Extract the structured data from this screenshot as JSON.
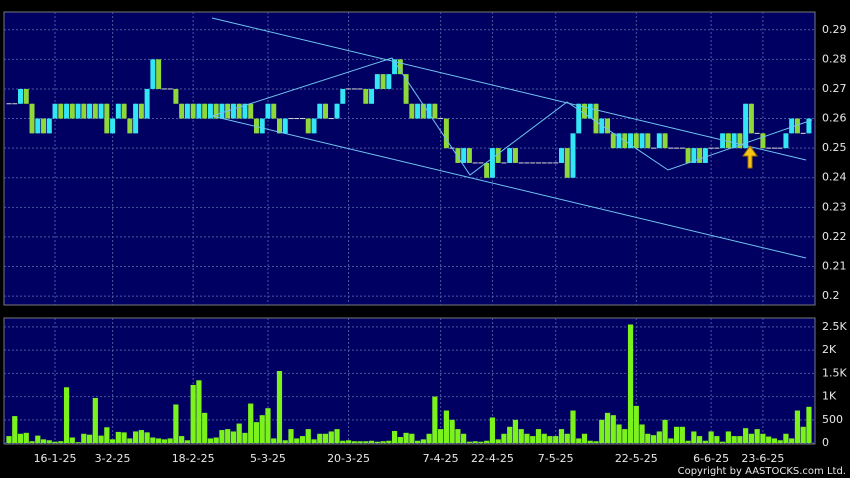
{
  "chart_data": [
    {
      "type": "candlestick",
      "categories": [
        null,
        null,
        null,
        null,
        null,
        null,
        null,
        null,
        "16-1-25",
        null,
        null,
        null,
        null,
        null,
        null,
        null,
        null,
        null,
        "3-2-25",
        null,
        null,
        null,
        null,
        null,
        null,
        null,
        null,
        null,
        null,
        null,
        null,
        null,
        "18-2-25",
        null,
        null,
        null,
        null,
        null,
        null,
        null,
        null,
        null,
        null,
        null,
        null,
        "5-3-25",
        null,
        null,
        null,
        null,
        null,
        null,
        null,
        null,
        null,
        null,
        null,
        null,
        null,
        "20-3-25",
        null,
        null,
        null,
        null,
        null,
        null,
        null,
        null,
        null,
        null,
        null,
        null,
        null,
        null,
        null,
        "7-4-25",
        null,
        null,
        null,
        null,
        null,
        null,
        null,
        null,
        "22-4-25",
        null,
        null,
        null,
        null,
        null,
        null,
        null,
        null,
        null,
        null,
        "7-5-25",
        null,
        null,
        null,
        null,
        null,
        null,
        null,
        null,
        null,
        null,
        null,
        null,
        null,
        "22-5-25",
        null,
        null,
        null,
        null,
        null,
        null,
        null,
        null,
        null,
        null,
        null,
        null,
        "6-6-25",
        null,
        null,
        null,
        null,
        null,
        null,
        null,
        null,
        "23-6-25",
        null,
        null,
        null,
        null,
        null,
        null,
        null,
        null
      ],
      "open": [
        0.265,
        0.265,
        0.265,
        0.27,
        0.265,
        0.255,
        0.26,
        0.255,
        0.26,
        0.265,
        0.26,
        0.265,
        0.26,
        0.265,
        0.26,
        0.265,
        0.26,
        0.265,
        0.255,
        0.26,
        0.265,
        0.26,
        0.255,
        0.265,
        0.26,
        0.27,
        0.28,
        0.27,
        0.27,
        0.27,
        0.265,
        0.26,
        0.265,
        0.26,
        0.265,
        0.26,
        0.265,
        0.26,
        0.265,
        0.26,
        0.265,
        0.26,
        0.265,
        0.26,
        0.255,
        0.26,
        0.265,
        0.26,
        0.255,
        0.26,
        0.26,
        0.26,
        0.26,
        0.255,
        0.26,
        0.265,
        0.26,
        0.26,
        0.265,
        0.27,
        0.27,
        0.27,
        0.27,
        0.265,
        0.27,
        0.275,
        0.27,
        0.275,
        0.28,
        0.275,
        0.265,
        0.26,
        0.265,
        0.26,
        0.265,
        0.26,
        0.26,
        0.25,
        0.25,
        0.245,
        0.25,
        0.245,
        0.245,
        0.245,
        0.24,
        0.25,
        0.245,
        0.245,
        0.25,
        0.245,
        0.245,
        0.245,
        0.245,
        0.245,
        0.245,
        0.245,
        0.245,
        0.25,
        0.24,
        0.255,
        0.265,
        0.26,
        0.265,
        0.255,
        0.26,
        0.255,
        0.25,
        0.255,
        0.25,
        0.255,
        0.25,
        0.255,
        0.25,
        0.25,
        0.255,
        0.25,
        0.25,
        0.25,
        0.25,
        0.245,
        0.25,
        0.245,
        0.25,
        0.25,
        0.25,
        0.255,
        0.25,
        0.255,
        0.25,
        0.265,
        0.255,
        0.255,
        0.25,
        0.25,
        0.25,
        0.25,
        0.255,
        0.26,
        0.255,
        0.255
      ],
      "high": [
        0.265,
        0.265,
        0.27,
        0.27,
        0.265,
        0.26,
        0.26,
        0.26,
        0.265,
        0.265,
        0.265,
        0.265,
        0.265,
        0.265,
        0.265,
        0.265,
        0.265,
        0.265,
        0.26,
        0.265,
        0.265,
        0.26,
        0.265,
        0.265,
        0.27,
        0.28,
        0.28,
        0.27,
        0.27,
        0.27,
        0.265,
        0.265,
        0.265,
        0.265,
        0.265,
        0.265,
        0.265,
        0.265,
        0.265,
        0.265,
        0.265,
        0.265,
        0.265,
        0.26,
        0.26,
        0.265,
        0.265,
        0.26,
        0.26,
        0.26,
        0.26,
        0.26,
        0.26,
        0.26,
        0.265,
        0.265,
        0.26,
        0.265,
        0.27,
        0.27,
        0.27,
        0.27,
        0.27,
        0.27,
        0.275,
        0.275,
        0.275,
        0.28,
        0.28,
        0.275,
        0.265,
        0.265,
        0.265,
        0.265,
        0.265,
        0.26,
        0.26,
        0.25,
        0.25,
        0.25,
        0.25,
        0.245,
        0.245,
        0.245,
        0.25,
        0.25,
        0.245,
        0.25,
        0.25,
        0.245,
        0.245,
        0.245,
        0.245,
        0.245,
        0.245,
        0.245,
        0.25,
        0.25,
        0.255,
        0.265,
        0.265,
        0.265,
        0.265,
        0.26,
        0.26,
        0.255,
        0.255,
        0.255,
        0.255,
        0.255,
        0.255,
        0.255,
        0.25,
        0.255,
        0.255,
        0.25,
        0.25,
        0.25,
        0.25,
        0.25,
        0.25,
        0.25,
        0.25,
        0.25,
        0.255,
        0.255,
        0.255,
        0.255,
        0.265,
        0.265,
        0.255,
        0.255,
        0.25,
        0.25,
        0.25,
        0.255,
        0.26,
        0.26,
        0.255,
        0.26
      ],
      "low": [
        0.265,
        0.265,
        0.265,
        0.265,
        0.255,
        0.255,
        0.255,
        0.255,
        0.26,
        0.26,
        0.26,
        0.26,
        0.26,
        0.26,
        0.26,
        0.26,
        0.26,
        0.255,
        0.255,
        0.26,
        0.26,
        0.255,
        0.255,
        0.26,
        0.26,
        0.27,
        0.27,
        0.27,
        0.27,
        0.265,
        0.26,
        0.26,
        0.26,
        0.26,
        0.26,
        0.26,
        0.26,
        0.26,
        0.26,
        0.26,
        0.26,
        0.26,
        0.26,
        0.255,
        0.255,
        0.26,
        0.26,
        0.255,
        0.255,
        0.26,
        0.26,
        0.26,
        0.255,
        0.255,
        0.26,
        0.26,
        0.26,
        0.26,
        0.265,
        0.27,
        0.27,
        0.27,
        0.265,
        0.265,
        0.27,
        0.27,
        0.27,
        0.275,
        0.275,
        0.265,
        0.26,
        0.26,
        0.26,
        0.26,
        0.26,
        0.26,
        0.25,
        0.25,
        0.245,
        0.245,
        0.245,
        0.245,
        0.245,
        0.24,
        0.24,
        0.245,
        0.245,
        0.245,
        0.245,
        0.245,
        0.245,
        0.245,
        0.245,
        0.245,
        0.245,
        0.245,
        0.245,
        0.24,
        0.24,
        0.255,
        0.26,
        0.26,
        0.255,
        0.255,
        0.255,
        0.25,
        0.25,
        0.25,
        0.25,
        0.25,
        0.25,
        0.25,
        0.25,
        0.25,
        0.25,
        0.25,
        0.25,
        0.25,
        0.245,
        0.245,
        0.245,
        0.245,
        0.25,
        0.25,
        0.25,
        0.25,
        0.25,
        0.25,
        0.25,
        0.255,
        0.255,
        0.25,
        0.25,
        0.25,
        0.25,
        0.25,
        0.255,
        0.255,
        0.255,
        0.255
      ],
      "close": [
        0.265,
        0.265,
        0.27,
        0.265,
        0.255,
        0.26,
        0.255,
        0.26,
        0.265,
        0.26,
        0.265,
        0.26,
        0.265,
        0.26,
        0.265,
        0.26,
        0.265,
        0.255,
        0.26,
        0.265,
        0.26,
        0.255,
        0.265,
        0.26,
        0.27,
        0.28,
        0.27,
        0.27,
        0.27,
        0.265,
        0.26,
        0.265,
        0.26,
        0.265,
        0.26,
        0.265,
        0.26,
        0.265,
        0.26,
        0.265,
        0.26,
        0.265,
        0.26,
        0.255,
        0.26,
        0.265,
        0.26,
        0.255,
        0.26,
        0.26,
        0.26,
        0.26,
        0.255,
        0.26,
        0.265,
        0.26,
        0.26,
        0.265,
        0.27,
        0.27,
        0.27,
        0.27,
        0.265,
        0.27,
        0.275,
        0.27,
        0.275,
        0.28,
        0.275,
        0.265,
        0.26,
        0.265,
        0.26,
        0.265,
        0.26,
        0.26,
        0.25,
        0.25,
        0.245,
        0.25,
        0.245,
        0.245,
        0.245,
        0.24,
        0.25,
        0.245,
        0.245,
        0.25,
        0.245,
        0.245,
        0.245,
        0.245,
        0.245,
        0.245,
        0.245,
        0.245,
        0.25,
        0.24,
        0.255,
        0.265,
        0.26,
        0.265,
        0.255,
        0.26,
        0.255,
        0.25,
        0.255,
        0.25,
        0.255,
        0.25,
        0.255,
        0.25,
        0.25,
        0.255,
        0.25,
        0.25,
        0.25,
        0.25,
        0.245,
        0.25,
        0.245,
        0.25,
        0.25,
        0.25,
        0.255,
        0.25,
        0.255,
        0.25,
        0.265,
        0.255,
        0.255,
        0.25,
        0.25,
        0.25,
        0.25,
        0.255,
        0.26,
        0.255,
        0.255,
        0.26
      ],
      "up_color": "#33e6f5",
      "down_color": "#8fd83a",
      "flat_color": "#d8d8d8",
      "ylim": [
        0.197,
        0.296
      ],
      "yticks": [
        0.2,
        0.21,
        0.22,
        0.23,
        0.24,
        0.25,
        0.26,
        0.27,
        0.28,
        0.29
      ],
      "grid": true
    },
    {
      "type": "bar",
      "values": [
        150,
        580,
        200,
        220,
        40,
        160,
        80,
        60,
        30,
        40,
        1200,
        120,
        20,
        200,
        180,
        970,
        160,
        340,
        80,
        240,
        230,
        100,
        250,
        280,
        230,
        120,
        100,
        80,
        100,
        830,
        150,
        60,
        1250,
        1350,
        650,
        100,
        120,
        280,
        300,
        250,
        420,
        220,
        850,
        450,
        600,
        750,
        100,
        1550,
        60,
        300,
        100,
        150,
        300,
        80,
        200,
        200,
        250,
        300,
        50,
        60,
        40,
        40,
        40,
        50,
        30,
        40,
        50,
        260,
        130,
        220,
        200,
        50,
        80,
        200,
        1000,
        300,
        700,
        500,
        300,
        200,
        30,
        40,
        30,
        50,
        550,
        80,
        200,
        350,
        500,
        300,
        200,
        150,
        300,
        200,
        150,
        150,
        300,
        200,
        700,
        100,
        200,
        50,
        40,
        500,
        650,
        600,
        400,
        300,
        2550,
        800,
        400,
        200,
        170,
        250,
        500,
        100,
        350,
        350,
        50,
        250,
        150,
        50,
        250,
        150,
        30,
        250,
        150,
        150,
        320,
        200,
        300,
        200,
        140,
        100,
        60,
        200,
        100,
        700,
        350,
        780
      ],
      "color": "#7cf21c",
      "ylim": [
        -20,
        2690
      ],
      "yticks": [
        0,
        500,
        {
          "value": 1000,
          "label": "1K"
        },
        {
          "value": 1500,
          "label": "1.5K"
        },
        {
          "value": 2000,
          "label": "2K"
        },
        {
          "value": 2500,
          "label": "2.5K"
        }
      ],
      "grid": true,
      "copyright": "Copyright by AASTOCKS.com Ltd."
    }
  ]
}
